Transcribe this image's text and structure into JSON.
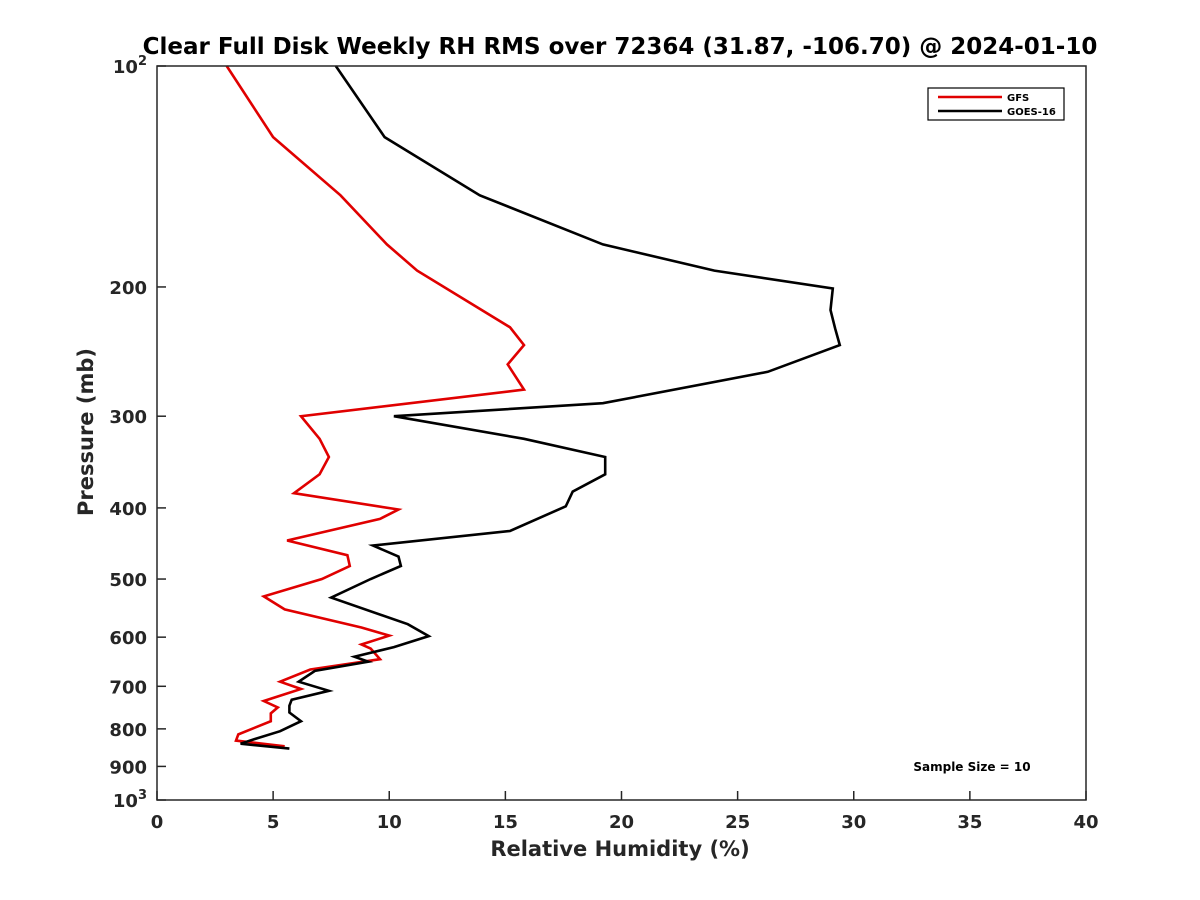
{
  "chart_data": {
    "type": "line",
    "title": "Clear Full Disk Weekly RH RMS over 72364 (31.87, -106.70) @ 2024-01-10",
    "xlabel": "Relative Humidity (%)",
    "ylabel": "Pressure (mb)",
    "xlim": [
      0,
      40
    ],
    "ylim": [
      100,
      1000
    ],
    "y_scale": "log",
    "y_reversed": true,
    "x_ticks": [
      "0",
      "5",
      "10",
      "15",
      "20",
      "25",
      "30",
      "35",
      "40"
    ],
    "y_ticks": [
      {
        "value": 100,
        "base": "10",
        "exp": "2"
      },
      {
        "value": 200,
        "label": "200"
      },
      {
        "value": 300,
        "label": "300"
      },
      {
        "value": 400,
        "label": "400"
      },
      {
        "value": 500,
        "label": "500"
      },
      {
        "value": 600,
        "label": "600"
      },
      {
        "value": 700,
        "label": "700"
      },
      {
        "value": 800,
        "label": "800"
      },
      {
        "value": 900,
        "label": "900"
      },
      {
        "value": 1000,
        "base": "10",
        "exp": "3"
      }
    ],
    "grid": false,
    "legend_position": "top-right",
    "series": [
      {
        "name": "GFS",
        "color": "#e00000",
        "points": [
          [
            3.0,
            100
          ],
          [
            5.0,
            125
          ],
          [
            7.9,
            150
          ],
          [
            9.9,
            175
          ],
          [
            11.2,
            190
          ],
          [
            15.2,
            227
          ],
          [
            15.8,
            240
          ],
          [
            15.1,
            255
          ],
          [
            15.8,
            276
          ],
          [
            6.2,
            300
          ],
          [
            7.0,
            322
          ],
          [
            7.4,
            341
          ],
          [
            7.0,
            360
          ],
          [
            5.9,
            382
          ],
          [
            10.4,
            402
          ],
          [
            9.6,
            414
          ],
          [
            5.6,
            443
          ],
          [
            8.2,
            464
          ],
          [
            8.3,
            480
          ],
          [
            7.1,
            500
          ],
          [
            4.6,
            528
          ],
          [
            5.5,
            550
          ],
          [
            8.8,
            582
          ],
          [
            10.0,
            597
          ],
          [
            8.8,
            614
          ],
          [
            9.2,
            622
          ],
          [
            9.6,
            643
          ],
          [
            6.6,
            664
          ],
          [
            5.3,
            690
          ],
          [
            6.2,
            706
          ],
          [
            4.6,
            733
          ],
          [
            5.2,
            748
          ],
          [
            4.9,
            762
          ],
          [
            4.9,
            781
          ],
          [
            3.5,
            814
          ],
          [
            3.4,
            830
          ],
          [
            5.5,
            845
          ]
        ]
      },
      {
        "name": "GOES-16",
        "color": "#000000",
        "points": [
          [
            7.7,
            100
          ],
          [
            9.8,
            125
          ],
          [
            13.9,
            150
          ],
          [
            19.2,
            175
          ],
          [
            24.0,
            190
          ],
          [
            29.1,
            201
          ],
          [
            29.0,
            215
          ],
          [
            29.2,
            228
          ],
          [
            29.4,
            240
          ],
          [
            26.3,
            261
          ],
          [
            19.2,
            288
          ],
          [
            10.2,
            300
          ],
          [
            15.8,
            322
          ],
          [
            19.3,
            341
          ],
          [
            19.3,
            360
          ],
          [
            17.9,
            380
          ],
          [
            17.6,
            398
          ],
          [
            15.2,
            430
          ],
          [
            9.3,
            450
          ],
          [
            10.4,
            466
          ],
          [
            10.5,
            480
          ],
          [
            9.2,
            500
          ],
          [
            7.5,
            530
          ],
          [
            10.8,
            576
          ],
          [
            11.7,
            598
          ],
          [
            10.2,
            619
          ],
          [
            8.5,
            638
          ],
          [
            9.1,
            648
          ],
          [
            6.8,
            667
          ],
          [
            6.1,
            690
          ],
          [
            7.4,
            710
          ],
          [
            5.8,
            730
          ],
          [
            5.7,
            744
          ],
          [
            5.7,
            760
          ],
          [
            6.2,
            781
          ],
          [
            5.3,
            806
          ],
          [
            4.2,
            826
          ],
          [
            3.6,
            838
          ],
          [
            5.7,
            851
          ]
        ]
      }
    ],
    "annotation": "Sample Size = 10"
  }
}
